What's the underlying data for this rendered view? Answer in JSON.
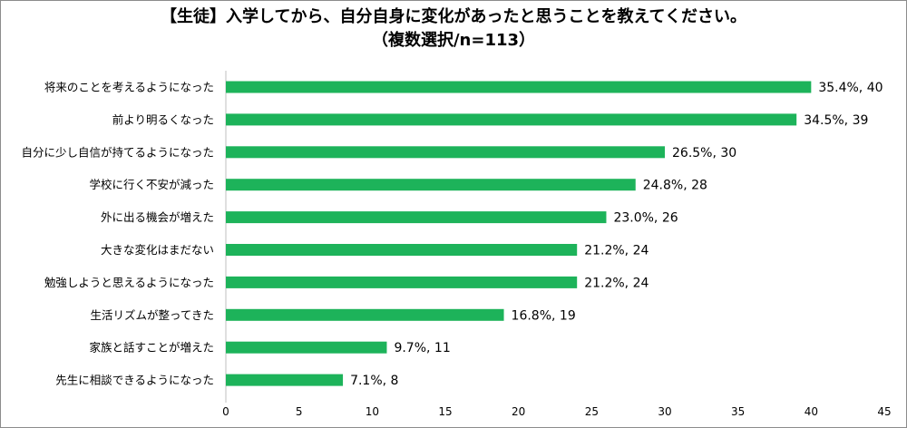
{
  "chart_data": {
    "type": "bar",
    "orientation": "horizontal",
    "title": "【生徒】入学してから、自分自身に変化があったと思うことを教えてください。",
    "subtitle": "（複数選択/n=113）",
    "categories": [
      "将来のことを考えるようになった",
      "前より明るくなった",
      "自分に少し自信が持てるようになった",
      "学校に行く不安が減った",
      "外に出る機会が増えた",
      "大きな変化はまだない",
      "勉強しようと思えるようになった",
      "生活リズムが整ってきた",
      "家族と話すことが増えた",
      "先生に相談できるようになった"
    ],
    "values": [
      40,
      39,
      30,
      28,
      26,
      24,
      24,
      19,
      11,
      8
    ],
    "data_labels": [
      "35.4%, 40",
      "34.5%, 39",
      "26.5%, 30",
      "24.8%, 28",
      "23.0%, 26",
      "21.2%, 24",
      "21.2%, 24",
      "16.8%, 19",
      "9.7%, 11",
      "7.1%, 8"
    ],
    "xlim": [
      0,
      45
    ],
    "xticks": [
      0,
      5,
      10,
      15,
      20,
      25,
      30,
      35,
      40,
      45
    ],
    "grid": false,
    "legend": "none",
    "bar_color": "#1db35a"
  }
}
